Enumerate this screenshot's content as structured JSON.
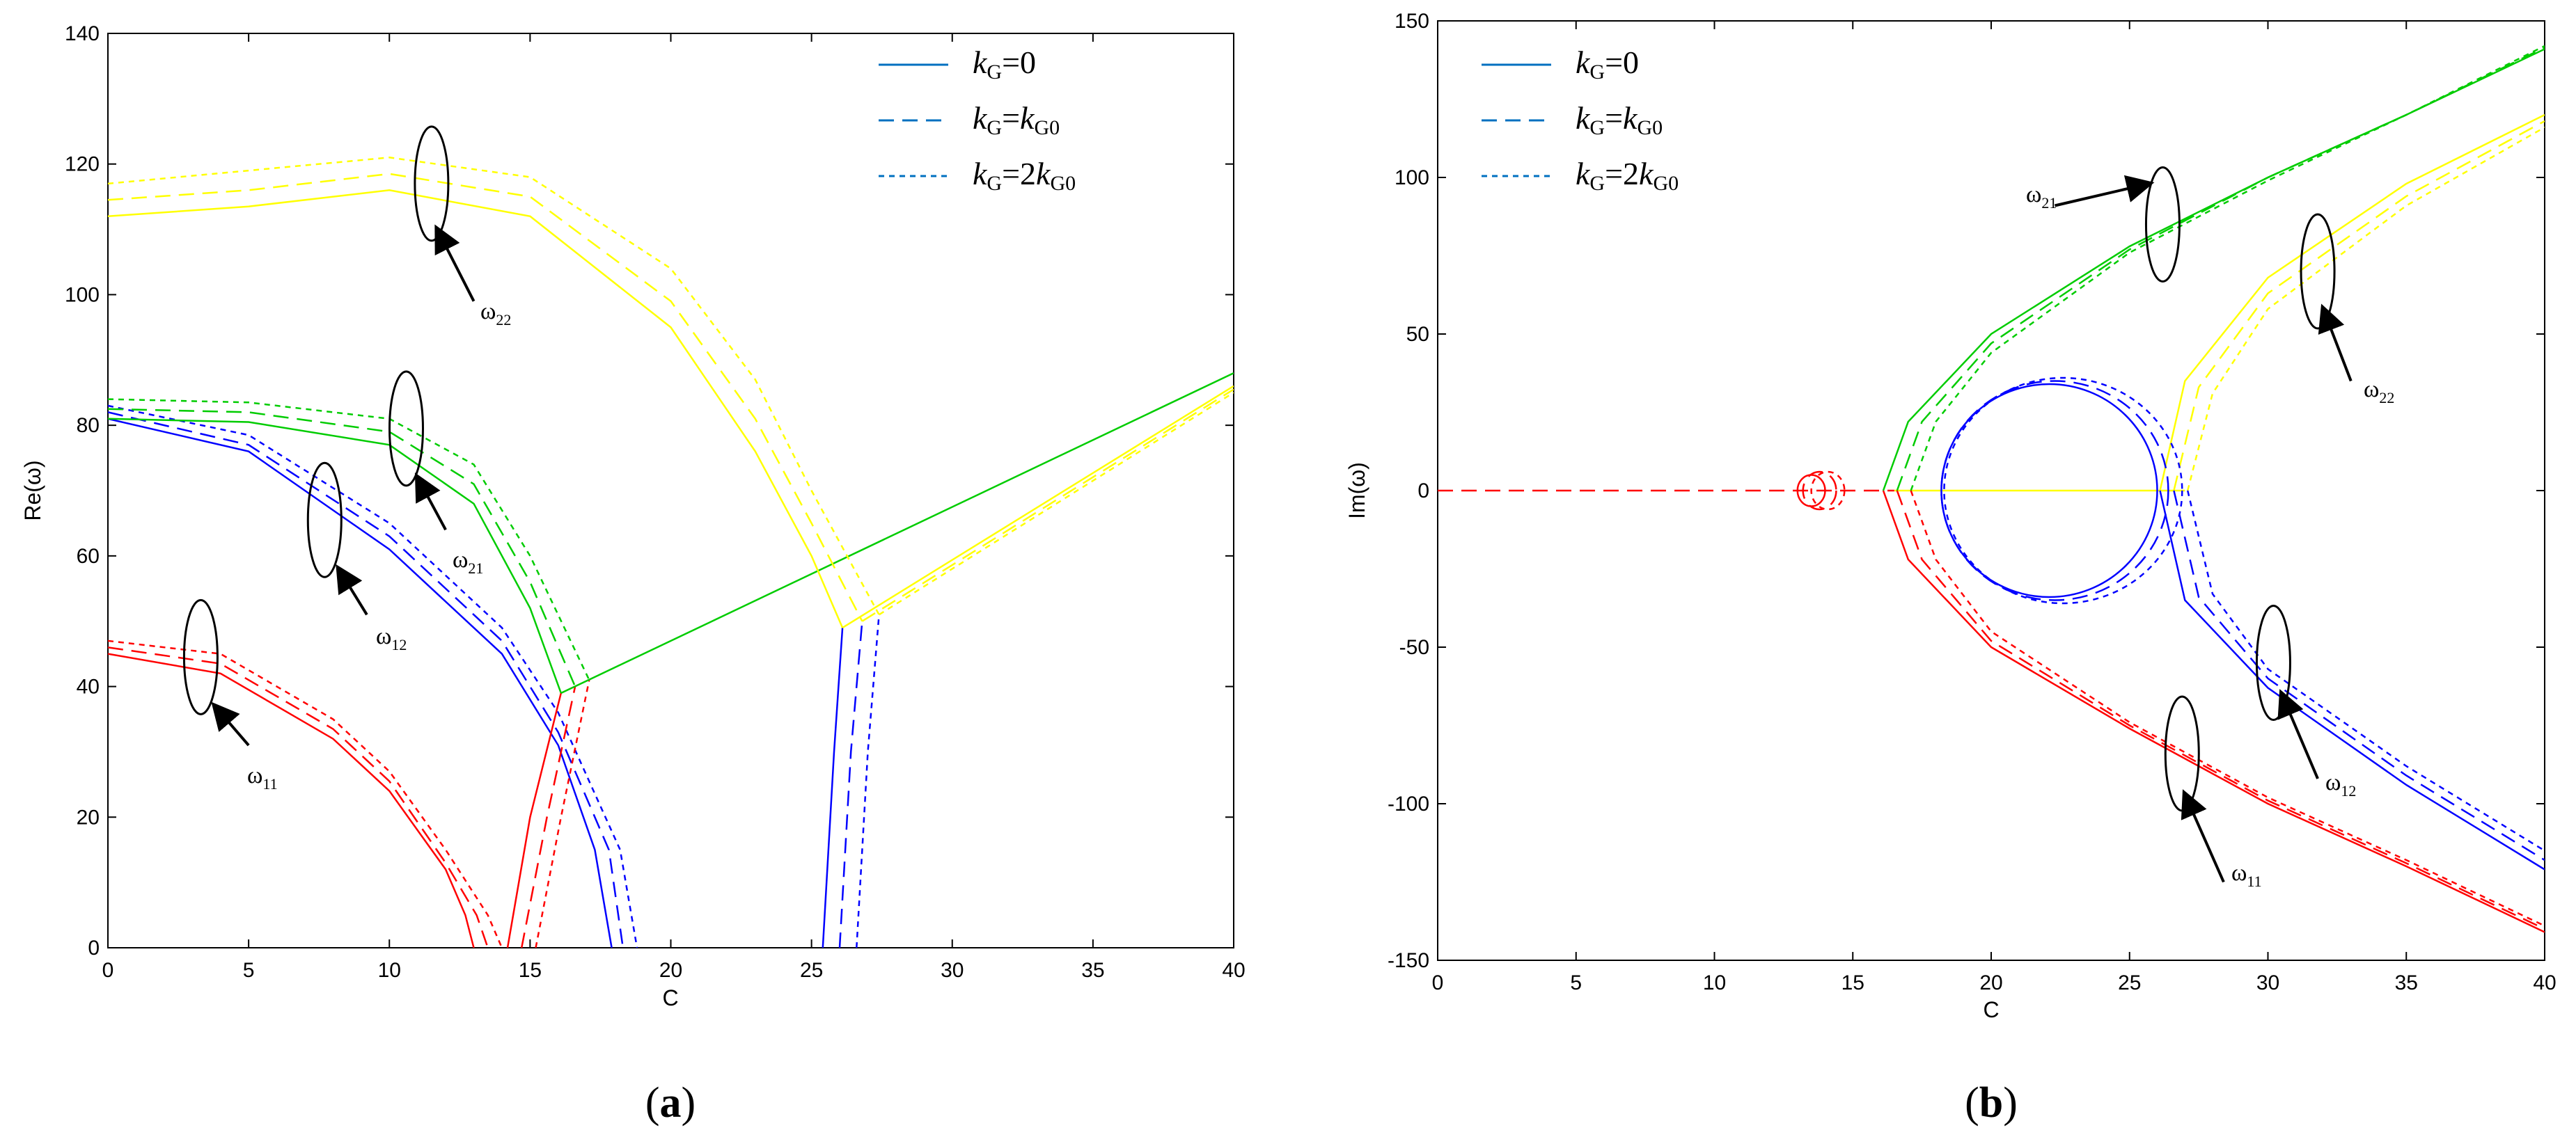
{
  "chart_data": [
    {
      "type": "line",
      "panel_label": "a",
      "xlabel": "C",
      "ylabel": "Re(ω)",
      "xlim": [
        0,
        40
      ],
      "ylim": [
        0,
        140
      ],
      "xticks": [
        "0",
        "5",
        "10",
        "15",
        "20",
        "25",
        "30",
        "35",
        "40"
      ],
      "yticks": [
        "0",
        "20",
        "40",
        "60",
        "80",
        "100",
        "120",
        "140"
      ],
      "grid": false,
      "legend_position": "top-right",
      "legend": [
        {
          "italic": "k",
          "sub": "G",
          "text": "=0",
          "style": "solid"
        },
        {
          "italic": "k",
          "sub": "G",
          "text": "=",
          "italic2": "k",
          "sub2": "G0",
          "style": "dashed"
        },
        {
          "italic": "k",
          "sub": "G",
          "text": "=2",
          "italic2": "k",
          "sub2": "G0",
          "style": "dotted"
        }
      ],
      "annotations": [
        {
          "base": "ω",
          "sub": "22"
        },
        {
          "base": "ω",
          "sub": "21"
        },
        {
          "base": "ω",
          "sub": "12"
        },
        {
          "base": "ω",
          "sub": "11"
        }
      ],
      "series": [
        {
          "mode": "ω11",
          "color": "#ff0000",
          "variants": [
            {
              "style": "solid",
              "x": [
                0,
                4,
                8,
                10,
                12,
                12.7,
                13.0
              ],
              "y": [
                45,
                42,
                32,
                24,
                12,
                5,
                0
              ]
            },
            {
              "style": "dashed",
              "x": [
                0,
                4,
                8,
                10,
                12,
                13.1,
                13.5
              ],
              "y": [
                46,
                43.5,
                33.5,
                25.5,
                13,
                5,
                0
              ]
            },
            {
              "style": "dotted",
              "x": [
                0,
                4,
                8,
                10,
                12,
                13.5,
                14.0
              ],
              "y": [
                47,
                45,
                35,
                27,
                15,
                5,
                0
              ]
            }
          ]
        },
        {
          "mode": "ω12",
          "color": "#0000ff",
          "variants": [
            {
              "style": "solid",
              "x": [
                0,
                5,
                10,
                14,
                16,
                17.3,
                17.9
              ],
              "y": [
                81,
                76,
                61,
                45,
                31,
                15,
                0
              ]
            },
            {
              "style": "dashed",
              "x": [
                0,
                5,
                10,
                14,
                16,
                17.8,
                18.3
              ],
              "y": [
                82,
                77,
                63,
                47,
                33,
                15,
                0
              ]
            },
            {
              "style": "dotted",
              "x": [
                0,
                5,
                10,
                14,
                16,
                18.2,
                18.8
              ],
              "y": [
                83,
                78.5,
                65,
                49,
                36,
                15,
                0
              ]
            }
          ]
        },
        {
          "mode": "ω12-upper",
          "color": "#0000ff",
          "variants": [
            {
              "style": "solid",
              "x": [
                25.4,
                25.8,
                26.1
              ],
              "y": [
                0,
                30,
                49
              ]
            },
            {
              "style": "dashed",
              "x": [
                26.0,
                26.4,
                26.8
              ],
              "y": [
                0,
                30,
                50
              ]
            },
            {
              "style": "dotted",
              "x": [
                26.6,
                27.0,
                27.4
              ],
              "y": [
                0,
                30,
                51
              ]
            }
          ]
        },
        {
          "mode": "ω21",
          "color": "#00cc00",
          "variants": [
            {
              "style": "solid",
              "x": [
                0,
                5,
                10,
                13,
                15,
                16.1
              ],
              "y": [
                81,
                80.5,
                77,
                68,
                52,
                39
              ]
            },
            {
              "style": "dashed",
              "x": [
                0,
                5,
                10,
                13,
                15,
                16.6
              ],
              "y": [
                82.5,
                82,
                79,
                71,
                56,
                40
              ]
            },
            {
              "style": "dotted",
              "x": [
                0,
                5,
                10,
                13,
                15,
                17.1
              ],
              "y": [
                84,
                83.5,
                81,
                74,
                60,
                41
              ]
            }
          ]
        },
        {
          "mode": "ω11-rise",
          "color": "#ff0000",
          "variants": [
            {
              "style": "solid",
              "x": [
                14.2,
                15,
                16.1
              ],
              "y": [
                0,
                20,
                39
              ]
            },
            {
              "style": "dashed",
              "x": [
                14.7,
                15.6,
                16.6
              ],
              "y": [
                0,
                20,
                40
              ]
            },
            {
              "style": "dotted",
              "x": [
                15.2,
                16.1,
                17.1
              ],
              "y": [
                0,
                20,
                41
              ]
            }
          ]
        },
        {
          "mode": "merged",
          "color": "#00cc00",
          "variants": [
            {
              "style": "solid",
              "x": [
                16.1,
                40
              ],
              "y": [
                39,
                88
              ]
            }
          ]
        },
        {
          "mode": "ω22",
          "color": "#ffff00",
          "variants": [
            {
              "style": "solid",
              "x": [
                0,
                5,
                10,
                15,
                20,
                23,
                25,
                26.1
              ],
              "y": [
                112,
                113.5,
                116,
                112,
                95,
                76,
                60,
                49
              ]
            },
            {
              "style": "dashed",
              "x": [
                0,
                5,
                10,
                15,
                20,
                23,
                25,
                26.8
              ],
              "y": [
                114.5,
                116,
                118.5,
                115,
                99,
                81,
                65,
                50
              ]
            },
            {
              "style": "dotted",
              "x": [
                0,
                5,
                10,
                15,
                20,
                23,
                25,
                27.4
              ],
              "y": [
                117,
                119,
                121,
                118,
                104,
                87,
                70,
                51
              ]
            }
          ]
        },
        {
          "mode": "ω22-rise",
          "color": "#ffff00",
          "variants": [
            {
              "style": "solid",
              "x": [
                26.1,
                40
              ],
              "y": [
                49,
                86
              ]
            },
            {
              "style": "dashed",
              "x": [
                26.8,
                40
              ],
              "y": [
                50,
                85.5
              ]
            },
            {
              "style": "dotted",
              "x": [
                27.4,
                40
              ],
              "y": [
                51,
                85
              ]
            }
          ]
        }
      ]
    },
    {
      "type": "line",
      "panel_label": "b",
      "xlabel": "C",
      "ylabel": "Im(ω)",
      "xlim": [
        0,
        40
      ],
      "ylim": [
        -150,
        150
      ],
      "xticks": [
        "0",
        "5",
        "10",
        "15",
        "20",
        "25",
        "30",
        "35",
        "40"
      ],
      "yticks": [
        "-150",
        "-100",
        "-50",
        "0",
        "50",
        "100",
        "150"
      ],
      "grid": false,
      "legend_position": "top-left",
      "legend": [
        {
          "italic": "k",
          "sub": "G",
          "text": "=0",
          "style": "solid"
        },
        {
          "italic": "k",
          "sub": "G",
          "text": "=",
          "italic2": "k",
          "sub2": "G0",
          "style": "dashed"
        },
        {
          "italic": "k",
          "sub": "G",
          "text": "=2",
          "italic2": "k",
          "sub2": "G0",
          "style": "dotted"
        }
      ],
      "annotations": [
        {
          "base": "ω",
          "sub": "21"
        },
        {
          "base": "ω",
          "sub": "22"
        },
        {
          "base": "ω",
          "sub": "12"
        },
        {
          "base": "ω",
          "sub": "11"
        }
      ],
      "series": [
        {
          "mode": "zero-line",
          "color": "#ff0000",
          "variants": [
            {
              "style": "dashed",
              "x": [
                0,
                16.5
              ],
              "y": [
                0,
                0
              ]
            }
          ]
        },
        {
          "mode": "zero-line-yellow",
          "color": "#ffff00",
          "variants": [
            {
              "style": "solid",
              "x": [
                16.5,
                27
              ],
              "y": [
                0,
                0
              ]
            }
          ]
        },
        {
          "mode": "ω21",
          "color": "#00cc00",
          "variants": [
            {
              "style": "solid",
              "x": [
                16.1,
                17,
                20,
                25,
                30,
                35,
                40
              ],
              "y": [
                0,
                22,
                50,
                78,
                100,
                120,
                141
              ]
            },
            {
              "style": "dashed",
              "x": [
                16.6,
                17.5,
                20,
                25,
                30,
                35,
                40
              ],
              "y": [
                0,
                22,
                47,
                77,
                100,
                120,
                141.5
              ]
            },
            {
              "style": "dotted",
              "x": [
                17.1,
                18,
                20,
                25,
                30,
                35,
                40
              ],
              "y": [
                0,
                22,
                44,
                76,
                99,
                120,
                142
              ]
            }
          ]
        },
        {
          "mode": "ω11",
          "color": "#ff0000",
          "variants": [
            {
              "style": "solid",
              "x": [
                16.1,
                17,
                20,
                25,
                30,
                35,
                40
              ],
              "y": [
                0,
                -22,
                -50,
                -76,
                -100,
                -120,
                -141
              ]
            },
            {
              "style": "dashed",
              "x": [
                16.6,
                17.5,
                20,
                25,
                30,
                35,
                40
              ],
              "y": [
                0,
                -22,
                -48,
                -75,
                -99,
                -119,
                -140
              ]
            },
            {
              "style": "dotted",
              "x": [
                17.1,
                18,
                20,
                25,
                30,
                35,
                40
              ],
              "y": [
                0,
                -22,
                -45,
                -74,
                -98,
                -118,
                -139
              ]
            }
          ]
        },
        {
          "mode": "ω22",
          "color": "#ffff00",
          "variants": [
            {
              "style": "solid",
              "x": [
                26.1,
                27,
                30,
                35,
                40
              ],
              "y": [
                0,
                35,
                68,
                98,
                120
              ]
            },
            {
              "style": "dashed",
              "x": [
                26.6,
                27.5,
                30,
                35,
                40
              ],
              "y": [
                0,
                33,
                63,
                94,
                118
              ]
            },
            {
              "style": "dotted",
              "x": [
                27.1,
                28,
                30,
                35,
                40
              ],
              "y": [
                0,
                31,
                58,
                91,
                116
              ]
            }
          ]
        },
        {
          "mode": "ω12",
          "color": "#0000ff",
          "variants": [
            {
              "style": "solid",
              "x": [
                26.1,
                27,
                30,
                35,
                40
              ],
              "y": [
                0,
                -35,
                -63,
                -94,
                -121
              ]
            },
            {
              "style": "dashed",
              "x": [
                26.6,
                27.5,
                30,
                35,
                40
              ],
              "y": [
                0,
                -34,
                -60,
                -91,
                -118
              ]
            },
            {
              "style": "dotted",
              "x": [
                27.1,
                28,
                30,
                35,
                40
              ],
              "y": [
                0,
                -33,
                -57,
                -88,
                -115
              ]
            }
          ]
        },
        {
          "mode": "ω12-loop",
          "color": "#0000ff",
          "variants": [
            {
              "style": "solid",
              "loop": {
                "cx": 22.1,
                "rx": 3.9,
                "ry": 34
              }
            },
            {
              "style": "dashed",
              "loop": {
                "cx": 22.3,
                "rx": 4.1,
                "ry": 35
              }
            },
            {
              "style": "dotted",
              "loop": {
                "cx": 22.6,
                "rx": 4.3,
                "ry": 36
              }
            }
          ]
        },
        {
          "mode": "ω11-loop",
          "color": "#ff0000",
          "variants": [
            {
              "style": "solid",
              "loop": {
                "cx": 13.5,
                "rx": 0.5,
                "ry": 5
              }
            },
            {
              "style": "dashed",
              "loop": {
                "cx": 13.8,
                "rx": 0.6,
                "ry": 6
              }
            },
            {
              "style": "dotted",
              "loop": {
                "cx": 14.1,
                "rx": 0.6,
                "ry": 6
              }
            }
          ]
        }
      ]
    }
  ]
}
